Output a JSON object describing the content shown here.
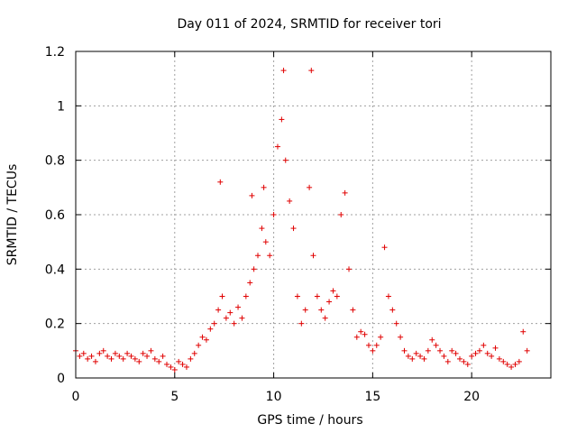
{
  "chart_data": {
    "type": "scatter",
    "title": "Day 011 of 2024, SRMTID for receiver tori",
    "xlabel": "GPS time / hours",
    "ylabel": "SRMTID / TECUs",
    "xlim": [
      0,
      24
    ],
    "ylim": [
      0,
      1.2
    ],
    "xticks": [
      "0",
      "5",
      "10",
      "15",
      "20"
    ],
    "yticks": [
      "0",
      "0.2",
      "0.4",
      "0.6",
      "0.8",
      "1",
      "1.2"
    ],
    "grid": true,
    "marker": "+",
    "color": "#e00000",
    "series": [
      {
        "name": "SRMTID",
        "x": [
          0.0,
          0.2,
          0.4,
          0.6,
          0.8,
          1.0,
          1.2,
          1.4,
          1.6,
          1.8,
          2.0,
          2.2,
          2.4,
          2.6,
          2.8,
          3.0,
          3.2,
          3.4,
          3.6,
          3.8,
          4.0,
          4.2,
          4.4,
          4.6,
          4.8,
          5.0,
          5.2,
          5.4,
          5.6,
          5.8,
          6.0,
          6.2,
          6.4,
          6.6,
          6.8,
          7.0,
          7.2,
          7.3,
          7.4,
          7.6,
          7.8,
          8.0,
          8.2,
          8.4,
          8.6,
          8.8,
          8.9,
          9.0,
          9.2,
          9.4,
          9.5,
          9.6,
          9.8,
          10.0,
          10.2,
          10.4,
          10.5,
          10.6,
          10.8,
          11.0,
          11.2,
          11.4,
          11.6,
          11.8,
          11.9,
          12.0,
          12.2,
          12.4,
          12.6,
          12.8,
          13.0,
          13.2,
          13.4,
          13.6,
          13.8,
          14.0,
          14.2,
          14.4,
          14.6,
          14.8,
          15.0,
          15.2,
          15.4,
          15.6,
          15.8,
          16.0,
          16.2,
          16.4,
          16.6,
          16.8,
          17.0,
          17.2,
          17.4,
          17.6,
          17.8,
          18.0,
          18.2,
          18.4,
          18.6,
          18.8,
          19.0,
          19.2,
          19.4,
          19.6,
          19.8,
          20.0,
          20.2,
          20.4,
          20.6,
          20.8,
          21.0,
          21.2,
          21.4,
          21.6,
          21.8,
          22.0,
          22.2,
          22.4,
          22.6,
          22.8
        ],
        "y": [
          0.1,
          0.08,
          0.09,
          0.07,
          0.08,
          0.06,
          0.09,
          0.1,
          0.08,
          0.07,
          0.09,
          0.08,
          0.07,
          0.09,
          0.08,
          0.07,
          0.06,
          0.09,
          0.08,
          0.1,
          0.07,
          0.06,
          0.08,
          0.05,
          0.04,
          0.03,
          0.06,
          0.05,
          0.04,
          0.07,
          0.09,
          0.12,
          0.15,
          0.14,
          0.18,
          0.2,
          0.25,
          0.72,
          0.3,
          0.22,
          0.24,
          0.2,
          0.26,
          0.22,
          0.3,
          0.35,
          0.67,
          0.4,
          0.45,
          0.55,
          0.7,
          0.5,
          0.45,
          0.6,
          0.85,
          0.95,
          1.13,
          0.8,
          0.65,
          0.55,
          0.3,
          0.2,
          0.25,
          0.7,
          1.13,
          0.45,
          0.3,
          0.25,
          0.22,
          0.28,
          0.32,
          0.3,
          0.6,
          0.68,
          0.4,
          0.25,
          0.15,
          0.17,
          0.16,
          0.12,
          0.1,
          0.12,
          0.15,
          0.48,
          0.3,
          0.25,
          0.2,
          0.15,
          0.1,
          0.08,
          0.07,
          0.09,
          0.08,
          0.07,
          0.1,
          0.14,
          0.12,
          0.1,
          0.08,
          0.06,
          0.1,
          0.09,
          0.07,
          0.06,
          0.05,
          0.08,
          0.09,
          0.1,
          0.12,
          0.09,
          0.08,
          0.11,
          0.07,
          0.06,
          0.05,
          0.04,
          0.05,
          0.06,
          0.17,
          0.1
        ]
      }
    ]
  }
}
